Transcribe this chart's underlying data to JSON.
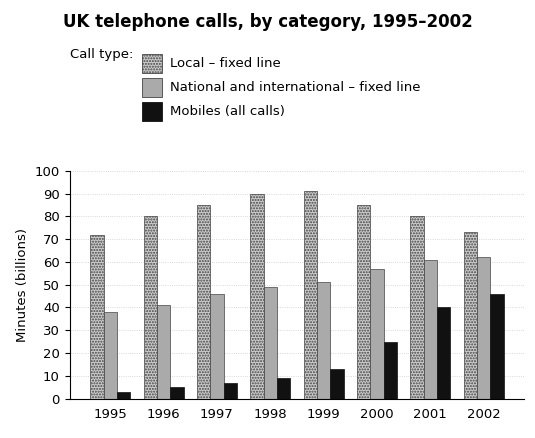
{
  "title": "UK telephone calls, by category, 1995–2002",
  "ylabel": "Minutes (billions)",
  "years": [
    1995,
    1996,
    1997,
    1998,
    1999,
    2000,
    2001,
    2002
  ],
  "local_fixed": [
    72,
    80,
    85,
    90,
    91,
    85,
    80,
    73
  ],
  "national_fixed": [
    38,
    41,
    46,
    49,
    51,
    57,
    61,
    62
  ],
  "mobiles": [
    3,
    5,
    7,
    9,
    13,
    25,
    40,
    46
  ],
  "ylim": [
    0,
    100
  ],
  "yticks": [
    0,
    10,
    20,
    30,
    40,
    50,
    60,
    70,
    80,
    90,
    100
  ],
  "legend_label_local": "Local – fixed line",
  "legend_label_national": "National and international – fixed line",
  "legend_label_mobile": "Mobiles (all calls)",
  "color_national": "#aaaaaa",
  "color_mobile": "#111111",
  "bar_width": 0.25,
  "background_color": "#ffffff",
  "call_type_label": "Call type:"
}
